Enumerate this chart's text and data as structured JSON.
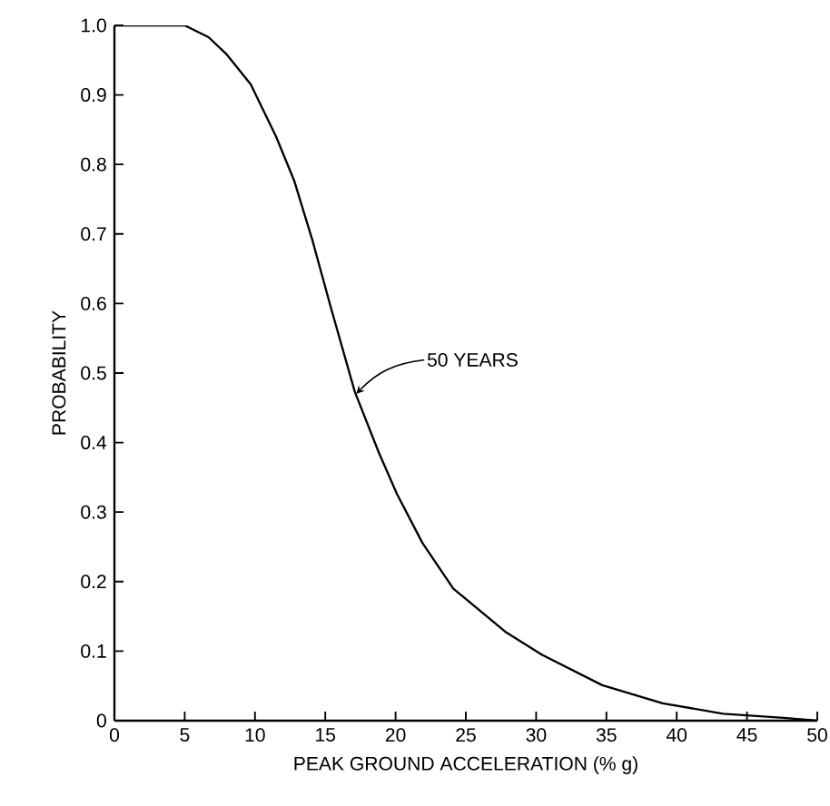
{
  "chart_data": {
    "type": "line",
    "xlabel": "PEAK GROUND ACCELERATION (% g)",
    "ylabel": "PROBABILITY",
    "x": [
      0,
      5,
      6.7,
      8,
      9.7,
      11.5,
      12.8,
      14.1,
      15.4,
      17.1,
      18.8,
      20.1,
      21.9,
      24.1,
      27.8,
      30.4,
      34.7,
      39,
      43.3,
      47.6,
      50
    ],
    "series": [
      {
        "color": "#000000",
        "values": [
          1,
          1,
          0.983,
          0.958,
          0.915,
          0.84,
          0.776,
          0.69,
          0.594,
          0.473,
          0.386,
          0.326,
          0.256,
          0.19,
          0.128,
          0.095,
          0.051,
          0.025,
          0.01,
          0.004,
          0
        ]
      }
    ],
    "annotations": [
      {
        "text": "50 YEARS",
        "x": 17.2,
        "y": 0.47
      }
    ],
    "xlim": [
      0,
      50
    ],
    "ylim": [
      0,
      1
    ],
    "xticks": [
      0,
      5,
      10,
      15,
      20,
      25,
      30,
      35,
      40,
      45,
      50
    ],
    "yticks": [
      0,
      0.1,
      0.2,
      0.3,
      0.4,
      0.5,
      0.6,
      0.7,
      0.8,
      0.9,
      {
        "value": 1,
        "label": "1.0"
      }
    ],
    "marker": "none",
    "line_style": "solid"
  }
}
